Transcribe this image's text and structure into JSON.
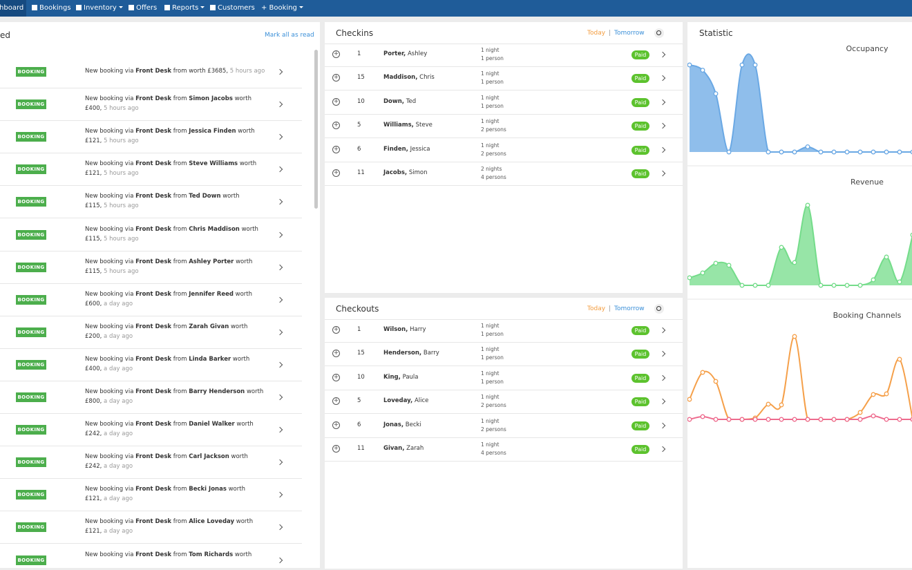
{
  "nav": {
    "items": [
      {
        "label": "Dashboard",
        "active": true
      },
      {
        "label": "Bookings"
      },
      {
        "label": "Inventory",
        "dropdown": true
      },
      {
        "label": "Offers"
      },
      {
        "label": "Reports",
        "dropdown": true
      },
      {
        "label": "Customers"
      },
      {
        "label": "+ Booking",
        "dropdown": true
      }
    ]
  },
  "notifications": {
    "title": "ed",
    "mark_all": "Mark all as read",
    "template": {
      "badge": "BOOKING",
      "lead": "New booking via",
      "channel": "Front Desk",
      "from": "from",
      "worth": "worth"
    },
    "rows": [
      {
        "amount": "£3685,",
        "time": "5 hours ago",
        "single_line": true
      },
      {
        "guest": "Simon Jacobs",
        "amount": "£400,",
        "time": "5 hours ago"
      },
      {
        "guest": "Jessica Finden",
        "amount": "£121,",
        "time": "5 hours ago"
      },
      {
        "guest": "Steve Williams",
        "amount": "£121,",
        "time": "5 hours ago"
      },
      {
        "guest": "Ted Down",
        "amount": "£115,",
        "time": "5 hours ago"
      },
      {
        "guest": "Chris Maddison",
        "amount": "£115,",
        "time": "5 hours ago"
      },
      {
        "guest": "Ashley Porter",
        "amount": "£115,",
        "time": "5 hours ago"
      },
      {
        "guest": "Jennifer Reed",
        "amount": "£600,",
        "time": "a day ago"
      },
      {
        "guest": "Zarah Givan",
        "amount": "£200,",
        "time": "a day ago"
      },
      {
        "guest": "Linda Barker",
        "amount": "£400,",
        "time": "a day ago"
      },
      {
        "guest": "Barry Henderson",
        "amount": "£800,",
        "time": "a day ago"
      },
      {
        "guest": "Daniel Walker",
        "amount": "£242,",
        "time": "a day ago"
      },
      {
        "guest": "Carl Jackson",
        "amount": "£242,",
        "time": "a day ago"
      },
      {
        "guest": "Becki Jonas",
        "amount": "£121,",
        "time": "a day ago"
      },
      {
        "guest": "Alice Loveday",
        "amount": "£121,",
        "time": "a day ago"
      },
      {
        "guest": "Tom Richards"
      }
    ]
  },
  "checkins": {
    "title": "Checkins",
    "today": "Today",
    "separator": "|",
    "tomorrow": "Tomorrow",
    "rows": [
      {
        "room": "1",
        "last": "Porter,",
        "first": "Ashley",
        "nights": "1 night",
        "persons": "1 person",
        "status": "Paid"
      },
      {
        "room": "15",
        "last": "Maddison,",
        "first": "Chris",
        "nights": "1 night",
        "persons": "1 person",
        "status": "Paid"
      },
      {
        "room": "10",
        "last": "Down,",
        "first": "Ted",
        "nights": "1 night",
        "persons": "1 person",
        "status": "Paid"
      },
      {
        "room": "5",
        "last": "Williams,",
        "first": "Steve",
        "nights": "1 night",
        "persons": "2 persons",
        "status": "Paid"
      },
      {
        "room": "6",
        "last": "Finden,",
        "first": "Jessica",
        "nights": "1 night",
        "persons": "2 persons",
        "status": "Paid"
      },
      {
        "room": "11",
        "last": "Jacobs,",
        "first": "Simon",
        "nights": "2 nights",
        "persons": "4 persons",
        "status": "Paid"
      }
    ]
  },
  "checkouts": {
    "title": "Checkouts",
    "today": "Today",
    "separator": "|",
    "tomorrow": "Tomorrow",
    "rows": [
      {
        "room": "1",
        "last": "Wilson,",
        "first": "Harry",
        "nights": "1 night",
        "persons": "1 person",
        "status": "Paid"
      },
      {
        "room": "15",
        "last": "Henderson,",
        "first": "Barry",
        "nights": "1 night",
        "persons": "1 person",
        "status": "Paid"
      },
      {
        "room": "10",
        "last": "King,",
        "first": "Paula",
        "nights": "1 night",
        "persons": "1 person",
        "status": "Paid"
      },
      {
        "room": "5",
        "last": "Loveday,",
        "first": "Alice",
        "nights": "1 night",
        "persons": "2 persons",
        "status": "Paid"
      },
      {
        "room": "6",
        "last": "Jonas,",
        "first": "Becki",
        "nights": "1 night",
        "persons": "2 persons",
        "status": "Paid"
      },
      {
        "room": "11",
        "last": "Givan,",
        "first": "Zarah",
        "nights": "1 night",
        "persons": "4 persons",
        "status": "Paid"
      }
    ]
  },
  "statistic": {
    "title": "Statistic"
  },
  "chart_data": [
    {
      "type": "area",
      "title": "Occupancy",
      "fill": true,
      "series": [
        {
          "color": "#6aa8e4",
          "values": [
            100,
            94,
            67,
            0,
            100,
            100,
            0,
            0,
            0,
            6,
            0,
            0,
            0,
            0,
            0,
            0,
            0,
            0
          ]
        }
      ]
    },
    {
      "type": "area",
      "title": "Revenue",
      "fill": true,
      "series": [
        {
          "color": "#74dc8a",
          "values": [
            11,
            18,
            32,
            29,
            0,
            0,
            0,
            55,
            33,
            116,
            0,
            0,
            0,
            0,
            8,
            41,
            5,
            73
          ]
        }
      ]
    },
    {
      "type": "line",
      "title": "Booking Channels",
      "fill": false,
      "series": [
        {
          "color": "#f5a04a",
          "values": [
            29,
            68,
            55,
            0,
            0,
            2,
            22,
            21,
            120,
            0,
            0,
            0,
            0,
            10,
            36,
            37,
            87,
            0
          ]
        },
        {
          "color": "#ee6b8e",
          "values": [
            0,
            4,
            0,
            0,
            0,
            0,
            0,
            0,
            0,
            0,
            0,
            0,
            0,
            0,
            5,
            0,
            0,
            0
          ]
        }
      ]
    }
  ]
}
